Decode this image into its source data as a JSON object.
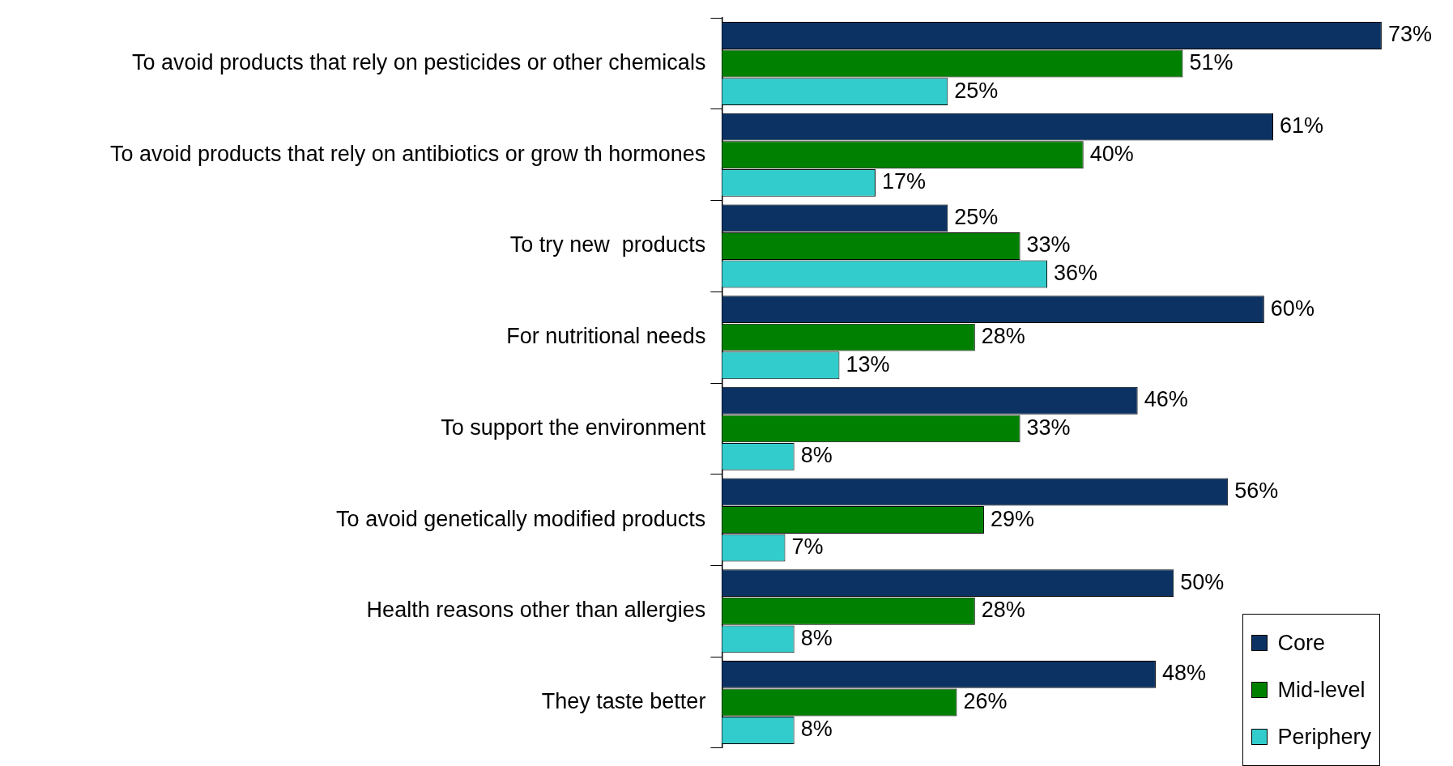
{
  "chart_data": {
    "type": "bar",
    "orientation": "horizontal",
    "legend": "bottom right",
    "grid": false,
    "categories": [
      "To avoid products that rely on pesticides or other chemicals",
      "To avoid products that rely on antibiotics or grow th hormones",
      "To try new  products",
      "For nutritional needs",
      "To support the environment",
      "To avoid genetically modified products",
      "Health reasons other than allergies",
      "They taste better"
    ],
    "series": [
      {
        "name": "Core",
        "color": "#0b3263",
        "values": [
          73,
          61,
          25,
          60,
          46,
          56,
          50,
          48
        ],
        "value_labels": [
          "73%",
          "61%",
          "25%",
          "60%",
          "46%",
          "56%",
          "50%",
          "48%"
        ]
      },
      {
        "name": "Mid-level",
        "color": "#008000",
        "values": [
          51,
          40,
          33,
          28,
          33,
          29,
          28,
          26
        ],
        "value_labels": [
          "51%",
          "40%",
          "33%",
          "28%",
          "33%",
          "29%",
          "28%",
          "26%"
        ]
      },
      {
        "name": "Periphery",
        "color": "#33cccc",
        "values": [
          25,
          17,
          36,
          13,
          8,
          7,
          8,
          8
        ],
        "value_labels": [
          "25%",
          "17%",
          "36%",
          "13%",
          "8%",
          "7%",
          "8%",
          "8%"
        ]
      }
    ]
  }
}
